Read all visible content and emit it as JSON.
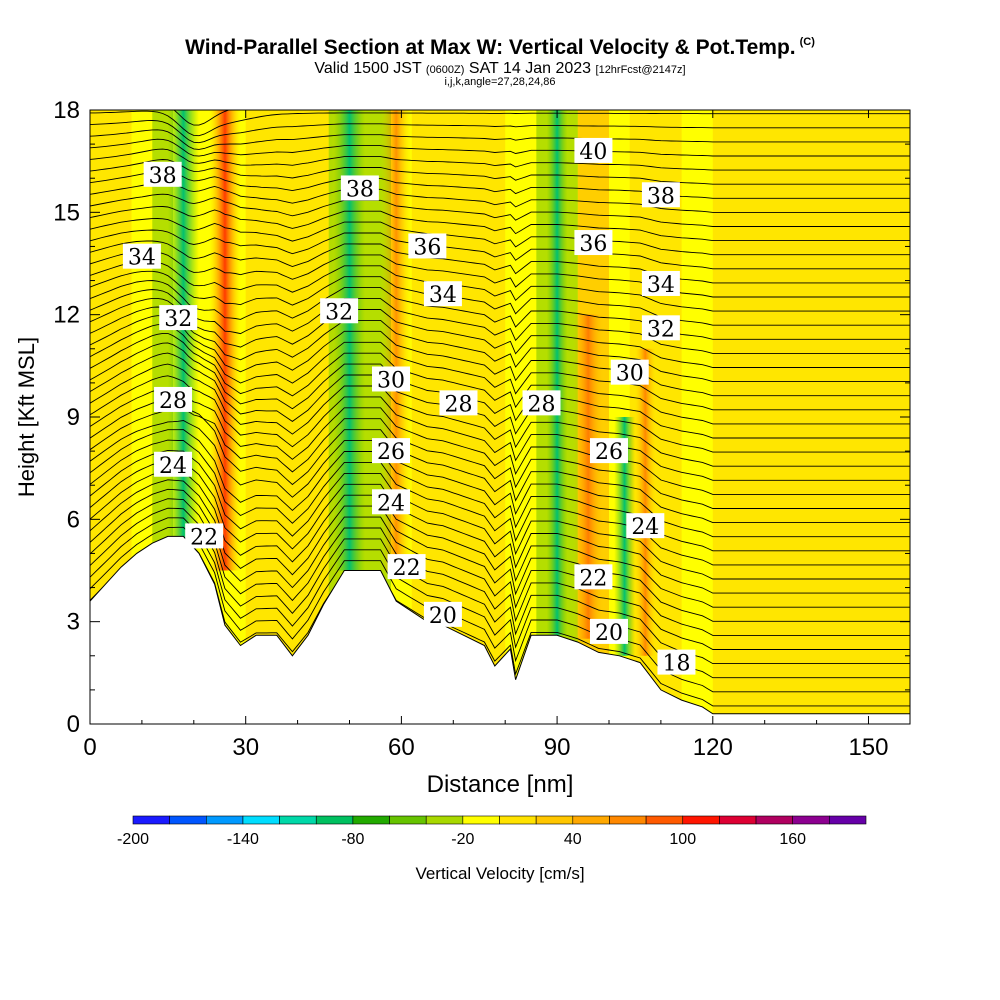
{
  "header": {
    "title": "Wind-Parallel Section at Max W: Vertical Velocity & Pot.Temp.",
    "copyright": "(C)",
    "valid_prefix": "Valid 1500 JST",
    "valid_utc": "(0600Z)",
    "valid_date": "SAT 14 Jan 2023",
    "forecast": "[12hrFcst@2147z]",
    "indices": "i,j,k,angle=27,28,24,86"
  },
  "chart_data": {
    "type": "heatmap",
    "title": "Wind-Parallel Section at Max W: Vertical Velocity & Pot.Temp.",
    "xlabel": "Distance [nm]",
    "ylabel": "Height [Kft MSL]",
    "xlim": [
      0,
      158
    ],
    "ylim": [
      0,
      18
    ],
    "x_ticks": [
      "0",
      "30",
      "60",
      "90",
      "120",
      "150"
    ],
    "y_ticks": [
      "0",
      "3",
      "6",
      "9",
      "12",
      "15",
      "18"
    ],
    "colorbar": {
      "label": "Vertical Velocity [cm/s]",
      "ticks": [
        "-200",
        "-140",
        "-80",
        "-20",
        "40",
        "100",
        "160"
      ],
      "colors": [
        "#1a1aff",
        "#0055ff",
        "#0099ff",
        "#00ddff",
        "#00d8a8",
        "#00c060",
        "#22aa00",
        "#66c300",
        "#a8d800",
        "#ffff00",
        "#ffe200",
        "#ffc600",
        "#ffa800",
        "#ff8800",
        "#ff5a00",
        "#ff1500",
        "#dd0033",
        "#b00060",
        "#8c0090",
        "#6600a8"
      ]
    },
    "theta_contour_labels": [
      {
        "value": "38",
        "x": 14,
        "z": 16.1
      },
      {
        "value": "38",
        "x": 52,
        "z": 15.7
      },
      {
        "value": "40",
        "x": 97,
        "z": 16.8
      },
      {
        "value": "38",
        "x": 110,
        "z": 15.5
      },
      {
        "value": "34",
        "x": 10,
        "z": 13.7
      },
      {
        "value": "36",
        "x": 65,
        "z": 14.0
      },
      {
        "value": "36",
        "x": 97,
        "z": 14.1
      },
      {
        "value": "34",
        "x": 68,
        "z": 12.6
      },
      {
        "value": "34",
        "x": 110,
        "z": 12.9
      },
      {
        "value": "32",
        "x": 17,
        "z": 11.9
      },
      {
        "value": "32",
        "x": 48,
        "z": 12.1
      },
      {
        "value": "32",
        "x": 110,
        "z": 11.6
      },
      {
        "value": "30",
        "x": 58,
        "z": 10.1
      },
      {
        "value": "30",
        "x": 104,
        "z": 10.3
      },
      {
        "value": "28",
        "x": 16,
        "z": 9.5
      },
      {
        "value": "28",
        "x": 71,
        "z": 9.4
      },
      {
        "value": "28",
        "x": 87,
        "z": 9.4
      },
      {
        "value": "26",
        "x": 58,
        "z": 8.0
      },
      {
        "value": "26",
        "x": 100,
        "z": 8.0
      },
      {
        "value": "24",
        "x": 16,
        "z": 7.6
      },
      {
        "value": "24",
        "x": 58,
        "z": 6.5
      },
      {
        "value": "24",
        "x": 107,
        "z": 5.8
      },
      {
        "value": "22",
        "x": 22,
        "z": 5.5
      },
      {
        "value": "22",
        "x": 61,
        "z": 4.6
      },
      {
        "value": "22",
        "x": 97,
        "z": 4.3
      },
      {
        "value": "20",
        "x": 68,
        "z": 3.2
      },
      {
        "value": "20",
        "x": 100,
        "z": 2.7
      },
      {
        "value": "18",
        "x": 113,
        "z": 1.8
      }
    ],
    "terrain_kft": [
      [
        0,
        3.6
      ],
      [
        3,
        4.1
      ],
      [
        6,
        4.6
      ],
      [
        9,
        5.0
      ],
      [
        12,
        5.3
      ],
      [
        15,
        5.5
      ],
      [
        18,
        5.5
      ],
      [
        21,
        5.0
      ],
      [
        24,
        4.1
      ],
      [
        26,
        2.9
      ],
      [
        29,
        2.3
      ],
      [
        32,
        2.6
      ],
      [
        36,
        2.6
      ],
      [
        39,
        2.0
      ],
      [
        42,
        2.6
      ],
      [
        45,
        3.5
      ],
      [
        49,
        4.5
      ],
      [
        56,
        4.5
      ],
      [
        59,
        3.6
      ],
      [
        62,
        3.3
      ],
      [
        65,
        3.0
      ],
      [
        68,
        2.9
      ],
      [
        72,
        2.6
      ],
      [
        76,
        2.3
      ],
      [
        78,
        1.7
      ],
      [
        81,
        2.2
      ],
      [
        82,
        1.3
      ],
      [
        85,
        2.6
      ],
      [
        90,
        2.6
      ],
      [
        94,
        2.4
      ],
      [
        98,
        2.1
      ],
      [
        102,
        2.0
      ],
      [
        106,
        1.8
      ],
      [
        110,
        1.0
      ],
      [
        114,
        0.7
      ],
      [
        118,
        0.5
      ],
      [
        120,
        0.3
      ],
      [
        158,
        0.3
      ]
    ],
    "updrafts": [
      {
        "x": 26,
        "w": 3,
        "z0": 4.5,
        "z1": 18,
        "level": 100,
        "note": "strong updraft column"
      },
      {
        "x": 59,
        "w": 3,
        "z0": 4.5,
        "z1": 18,
        "level": 40
      },
      {
        "x": 96,
        "w": 3,
        "z0": 2.5,
        "z1": 12,
        "level": 40
      },
      {
        "x": 107,
        "w": 2,
        "z0": 2.0,
        "z1": 11,
        "level": 40
      }
    ],
    "downdrafts": [
      {
        "x": 18,
        "w": 3,
        "z0": 5.0,
        "z1": 18,
        "level": -140
      },
      {
        "x": 50,
        "w": 3,
        "z0": 4.5,
        "z1": 18,
        "level": -80
      },
      {
        "x": 90,
        "w": 2,
        "z0": 2.6,
        "z1": 18,
        "level": -40
      },
      {
        "x": 103,
        "w": 2,
        "z0": 2.0,
        "z1": 9,
        "level": -30
      }
    ]
  }
}
